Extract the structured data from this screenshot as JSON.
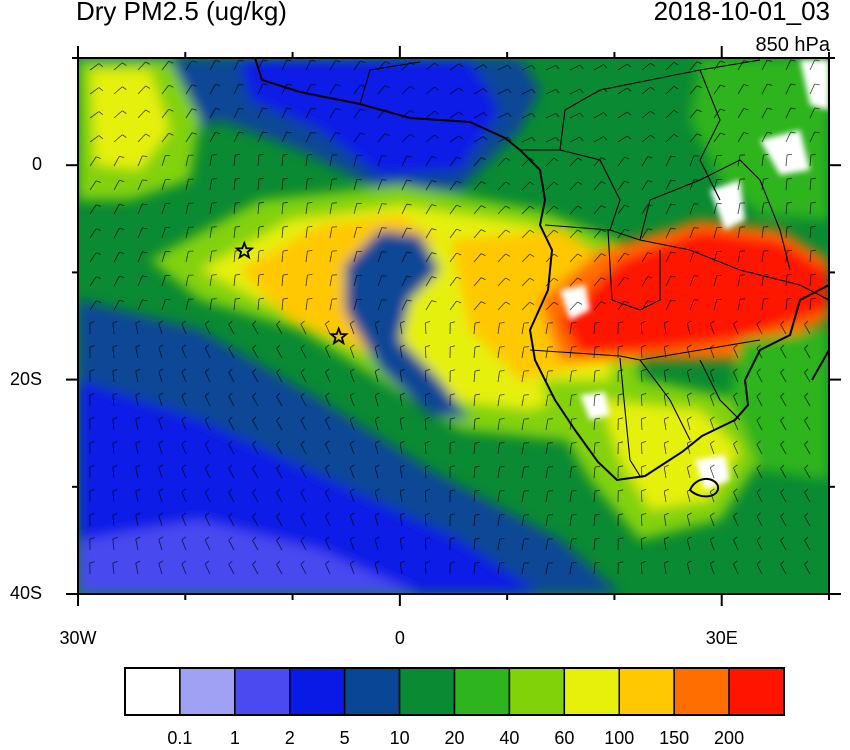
{
  "header": {
    "title": "Dry PM2.5 (ug/kg)",
    "valid_time": "2018-10-01_03",
    "level": "850 hPa"
  },
  "map": {
    "domain": {
      "lon": [
        -30,
        40
      ],
      "lat": [
        -40,
        10
      ]
    },
    "x_ticks": [
      {
        "lon": -30,
        "label": "30W"
      },
      {
        "lon": 0,
        "label": "0"
      },
      {
        "lon": 30,
        "label": "30E"
      }
    ],
    "y_ticks": [
      {
        "lat": 0,
        "label": "0"
      },
      {
        "lat": -20,
        "label": "20S"
      },
      {
        "lat": -40,
        "label": "40S"
      }
    ],
    "markers": [
      {
        "name": "star-marker-1",
        "lon": -14.5,
        "lat": -8
      },
      {
        "name": "star-marker-2",
        "lon": -5.7,
        "lat": -16
      }
    ]
  },
  "colorbar": {
    "levels": [
      "0.1",
      "1",
      "2",
      "5",
      "10",
      "20",
      "40",
      "60",
      "100",
      "150",
      "200"
    ],
    "colors": [
      "#ffffff",
      "#a0a0f5",
      "#4a4af0",
      "#0a1ae6",
      "#0a4696",
      "#0a8a32",
      "#2eb41e",
      "#82d20a",
      "#e6f00a",
      "#ffc800",
      "#ff6e00",
      "#ff1400"
    ]
  },
  "colors": {
    "background_field": "#0a8a32",
    "ocean_low": "#0a4696",
    "plume": "#e6f00a",
    "plume_core": "#ffc800",
    "fire_source": "#ff1400"
  }
}
